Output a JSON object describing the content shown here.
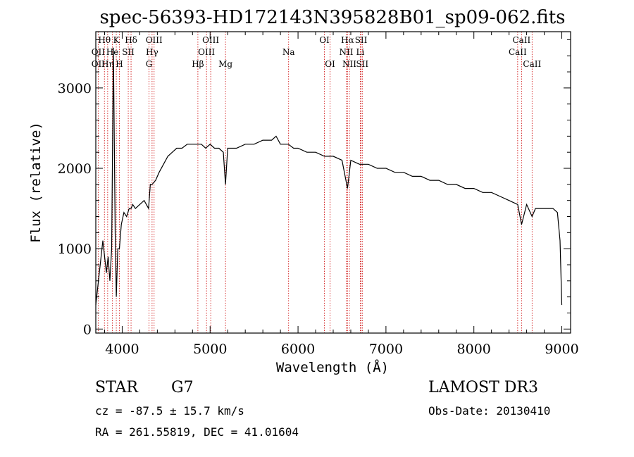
{
  "chart_data": {
    "type": "line",
    "title": "spec-56393-HD172143N395828B01_sp09-062.fits",
    "xlabel": "Wavelength (Å)",
    "ylabel": "Flux (relative)",
    "xlim": [
      3700,
      9100
    ],
    "ylim": [
      -50,
      3700
    ],
    "x_ticks": [
      4000,
      5000,
      6000,
      7000,
      8000,
      9000
    ],
    "y_ticks": [
      0,
      1000,
      2000,
      3000
    ],
    "grid": false,
    "legend": "none",
    "series": [
      {
        "color": "#000000",
        "x": [
          3700,
          3720,
          3740,
          3760,
          3780,
          3800,
          3820,
          3840,
          3860,
          3880,
          3900,
          3920,
          3933,
          3950,
          3968,
          3990,
          4020,
          4050,
          4080,
          4101,
          4120,
          4150,
          4200,
          4250,
          4300,
          4320,
          4340,
          4380,
          4420,
          4470,
          4520,
          4570,
          4620,
          4680,
          4740,
          4800,
          4861,
          4900,
          4950,
          5000,
          5050,
          5100,
          5150,
          5175,
          5200,
          5300,
          5400,
          5500,
          5600,
          5700,
          5750,
          5800,
          5890,
          5950,
          6000,
          6100,
          6200,
          6300,
          6400,
          6500,
          6563,
          6600,
          6700,
          6800,
          6900,
          7000,
          7100,
          7200,
          7300,
          7400,
          7500,
          7600,
          7700,
          7800,
          7900,
          8000,
          8100,
          8200,
          8300,
          8400,
          8498,
          8542,
          8600,
          8662,
          8700,
          8800,
          8900,
          8950,
          8980,
          9000
        ],
        "y": [
          300,
          500,
          700,
          900,
          1100,
          900,
          700,
          900,
          600,
          1000,
          3500,
          1200,
          400,
          1000,
          1000,
          1300,
          1450,
          1400,
          1500,
          1500,
          1550,
          1500,
          1550,
          1600,
          1500,
          1800,
          1800,
          1850,
          1950,
          2050,
          2150,
          2200,
          2250,
          2250,
          2300,
          2300,
          2300,
          2300,
          2250,
          2300,
          2250,
          2250,
          2200,
          1800,
          2250,
          2250,
          2300,
          2300,
          2350,
          2350,
          2400,
          2300,
          2300,
          2250,
          2250,
          2200,
          2200,
          2150,
          2150,
          2100,
          1750,
          2100,
          2050,
          2050,
          2000,
          2000,
          1950,
          1950,
          1900,
          1900,
          1850,
          1850,
          1800,
          1800,
          1750,
          1750,
          1700,
          1700,
          1650,
          1600,
          1550,
          1300,
          1550,
          1400,
          1500,
          1500,
          1500,
          1450,
          1100,
          300
        ]
      }
    ],
    "lines": [
      {
        "label": "Hθ",
        "wavelength": 3798,
        "row": 0
      },
      {
        "label": "OII",
        "wavelength": 3727,
        "row": 1
      },
      {
        "label": "OII",
        "wavelength": 3727,
        "row": 2
      },
      {
        "label": "Hη",
        "wavelength": 3835,
        "row": 2
      },
      {
        "label": "He",
        "wavelength": 3889,
        "row": 1
      },
      {
        "label": "K",
        "wavelength": 3933,
        "row": 0
      },
      {
        "label": "H",
        "wavelength": 3968,
        "row": 2
      },
      {
        "label": "SII",
        "wavelength": 4069,
        "row": 1
      },
      {
        "label": "Hδ",
        "wavelength": 4101,
        "row": 0
      },
      {
        "label": "OIII",
        "wavelength": 4363,
        "row": 0
      },
      {
        "label": "Hγ",
        "wavelength": 4340,
        "row": 1
      },
      {
        "label": "G",
        "wavelength": 4305,
        "row": 2
      },
      {
        "label": "OIII",
        "wavelength": 5007,
        "row": 0
      },
      {
        "label": "OIII",
        "wavelength": 4959,
        "row": 1
      },
      {
        "label": "Hβ",
        "wavelength": 4861,
        "row": 2
      },
      {
        "label": "Mg",
        "wavelength": 5175,
        "row": 2
      },
      {
        "label": "Na",
        "wavelength": 5893,
        "row": 1
      },
      {
        "label": "OI",
        "wavelength": 6300,
        "row": 0
      },
      {
        "label": "OI",
        "wavelength": 6364,
        "row": 2
      },
      {
        "label": "Hα",
        "wavelength": 6563,
        "row": 0
      },
      {
        "label": "NII",
        "wavelength": 6548,
        "row": 1
      },
      {
        "label": "NII",
        "wavelength": 6584,
        "row": 2
      },
      {
        "label": "SII",
        "wavelength": 6717,
        "row": 0
      },
      {
        "label": "Li",
        "wavelength": 6708,
        "row": 1
      },
      {
        "label": "SII",
        "wavelength": 6731,
        "row": 2
      },
      {
        "label": "CaII",
        "wavelength": 8542,
        "row": 0
      },
      {
        "label": "CaII",
        "wavelength": 8498,
        "row": 1
      },
      {
        "label": "CaII",
        "wavelength": 8662,
        "row": 2
      }
    ]
  },
  "info": {
    "class": "STAR",
    "subclass": "G7",
    "survey": "LAMOST DR3",
    "cz": "cz = -87.5 ± 15.7 km/s",
    "obs_date": "Obs-Date: 20130410",
    "coords": "RA = 261.55819, DEC =  41.01604"
  },
  "colors": {
    "spectrum": "#000000",
    "line_marker": "#cc0000"
  }
}
